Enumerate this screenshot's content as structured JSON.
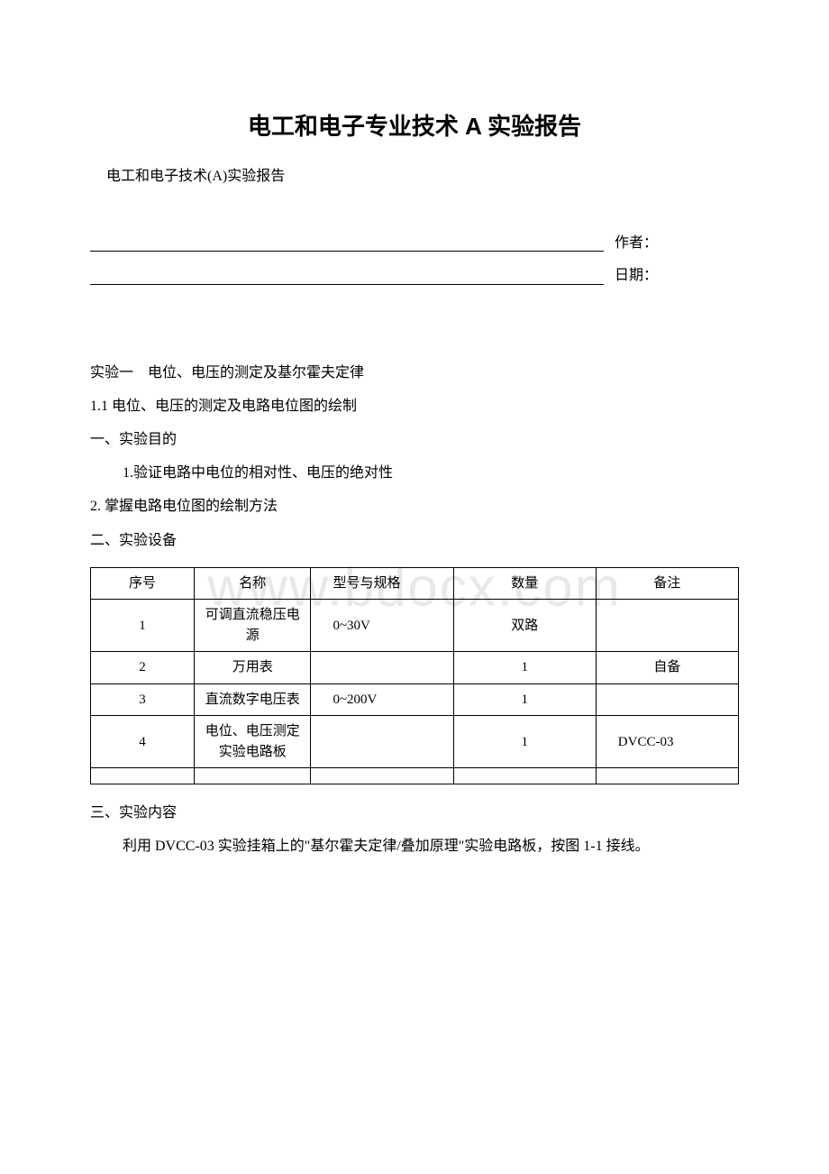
{
  "watermark": "www.bdocx.com",
  "title": "电工和电子专业技术 A 实验报告",
  "subtitle": "电工和电子技术(A)实验报告",
  "author_label": "作者：",
  "date_label": "日期：",
  "experiment_heading": "实验一　电位、电压的测定及基尔霍夫定律",
  "section_1_1": "1.1 电位、电压的测定及电路电位图的绘制",
  "purpose_heading": "一、实验目的",
  "purpose_1": "1.验证电路中电位的相对性、电压的绝对性",
  "purpose_2": "2. 掌握电路电位图的绘制方法",
  "equipment_heading": "二、实验设备",
  "table": {
    "headers": {
      "col1": "序号",
      "col2": "名称",
      "col3": "型号与规格",
      "col4": "数量",
      "col5": "备注"
    },
    "rows": [
      {
        "c1": "1",
        "c2": "可调直流稳压电源",
        "c3": "0~30V",
        "c4": "双路",
        "c5": ""
      },
      {
        "c1": "2",
        "c2": "万用表",
        "c3": "",
        "c4": "1",
        "c5": "自备"
      },
      {
        "c1": "3",
        "c2": "直流数字电压表",
        "c3": "0~200V",
        "c4": "1",
        "c5": ""
      },
      {
        "c1": "4",
        "c2": "电位、电压测定实验电路板",
        "c3": "",
        "c4": "1",
        "c5": "DVCC-03"
      }
    ]
  },
  "content_heading": "三、实验内容",
  "content_body": "利用 DVCC-03 实验挂箱上的\"基尔霍夫定律/叠加原理\"实验电路板，按图 1-1 接线。",
  "colors": {
    "text": "#000000",
    "background": "#ffffff",
    "watermark": "#e8e8e8",
    "border": "#000000"
  }
}
